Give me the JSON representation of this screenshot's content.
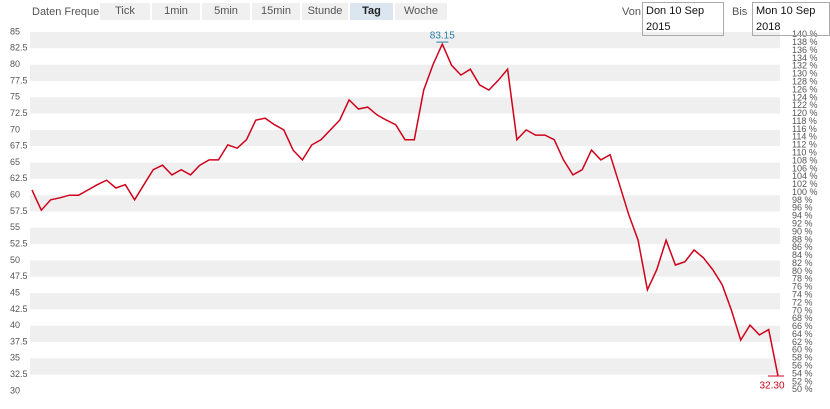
{
  "toolbar": {
    "label": "Daten Frequenz",
    "buttons": [
      {
        "label": "Tick",
        "selected": false
      },
      {
        "label": "1min",
        "selected": false
      },
      {
        "label": "5min",
        "selected": false
      },
      {
        "label": "15min",
        "selected": false
      },
      {
        "label": "Stunde",
        "selected": false
      },
      {
        "label": "Tag",
        "selected": true
      },
      {
        "label": "Woche",
        "selected": false
      }
    ],
    "from_label": "Von",
    "from_value": "Don 10 Sep 2015",
    "to_label": "Bis",
    "to_value": "Mon 10 Sep 2018"
  },
  "chart_data": {
    "type": "line",
    "color": "#d0021b",
    "grid": "bands",
    "values": [
      60.8,
      57.7,
      59.3,
      59.6,
      60,
      60,
      60.8,
      61.6,
      62.3,
      61.1,
      61.6,
      59.3,
      61.6,
      63.9,
      64.6,
      63.1,
      63.9,
      63.1,
      64.6,
      65.4,
      65.4,
      67.7,
      67.2,
      68.5,
      71.5,
      71.8,
      70.8,
      70,
      66.9,
      65.4,
      67.7,
      68.5,
      70,
      71.5,
      74.6,
      73.2,
      73.5,
      72.3,
      71.5,
      70.8,
      68.5,
      68.5,
      76.1,
      80,
      83.15,
      79.9,
      78.4,
      79.3,
      76.9,
      76.1,
      77.6,
      79.3,
      68.5,
      70,
      69.2,
      69.2,
      68.5,
      65.4,
      63.1,
      63.9,
      66.9,
      65.4,
      66.2,
      61.6,
      57,
      53.1,
      45.5,
      48.6,
      53.1,
      49.3,
      49.8,
      51.6,
      50.4,
      48.6,
      46.3,
      42.4,
      37.8,
      40.1,
      38.6,
      39.4,
      32.3
    ],
    "ylim": [
      30,
      85
    ],
    "yticks": [
      85,
      82.5,
      80,
      77.5,
      75,
      72.5,
      70,
      67.5,
      65,
      62.5,
      60,
      57.5,
      55,
      52.5,
      50,
      47.5,
      45,
      42.5,
      40,
      37.5,
      35,
      32.5,
      30
    ],
    "y2lim": [
      49.7,
      140.7
    ],
    "y2ticks": [
      {
        "value": 140,
        "label": "140 %"
      },
      {
        "value": 138,
        "label": "138 %"
      },
      {
        "value": 136,
        "label": "136 %"
      },
      {
        "value": 134,
        "label": "134 %"
      },
      {
        "value": 132,
        "label": "132 %"
      },
      {
        "value": 130,
        "label": "130 %"
      },
      {
        "value": 128,
        "label": "128 %"
      },
      {
        "value": 126,
        "label": "126 %"
      },
      {
        "value": 124,
        "label": "124 %"
      },
      {
        "value": 122,
        "label": "122 %"
      },
      {
        "value": 120,
        "label": "120 %"
      },
      {
        "value": 118,
        "label": "118 %"
      },
      {
        "value": 116,
        "label": "116 %"
      },
      {
        "value": 114,
        "label": "114 %"
      },
      {
        "value": 112,
        "label": "112 %"
      },
      {
        "value": 110,
        "label": "110 %"
      },
      {
        "value": 108,
        "label": "108 %"
      },
      {
        "value": 106,
        "label": "106 %"
      },
      {
        "value": 104,
        "label": "104 %"
      },
      {
        "value": 102,
        "label": "102 %"
      },
      {
        "value": 100,
        "label": "100 %"
      },
      {
        "value": 98,
        "label": "98 %"
      },
      {
        "value": 96,
        "label": "96 %"
      },
      {
        "value": 94,
        "label": "94 %"
      },
      {
        "value": 92,
        "label": "92 %"
      },
      {
        "value": 90,
        "label": "90 %"
      },
      {
        "value": 88,
        "label": "88 %"
      },
      {
        "value": 86,
        "label": "86 %"
      },
      {
        "value": 84,
        "label": "84 %"
      },
      {
        "value": 82,
        "label": "82 %"
      },
      {
        "value": 80,
        "label": "80 %"
      },
      {
        "value": 78,
        "label": "78 %"
      },
      {
        "value": 76,
        "label": "76 %"
      },
      {
        "value": 74,
        "label": "74 %"
      },
      {
        "value": 72,
        "label": "72 %"
      },
      {
        "value": 70,
        "label": "70 %"
      },
      {
        "value": 68,
        "label": "68 %"
      },
      {
        "value": 66,
        "label": "66 %"
      },
      {
        "value": 64,
        "label": "64 %"
      },
      {
        "value": 62,
        "label": "62 %"
      },
      {
        "value": 60,
        "label": "60 %"
      },
      {
        "value": 58,
        "label": "58 %"
      },
      {
        "value": 56,
        "label": "56 %"
      },
      {
        "value": 54,
        "label": "54 %"
      },
      {
        "value": 52,
        "label": "52 %"
      },
      {
        "value": 50,
        "label": "50 %"
      }
    ],
    "annotations": [
      {
        "value": 83.15,
        "label": "83.15",
        "color": "#2a7fa8"
      },
      {
        "value": 32.3,
        "label": "32.30",
        "color": "#d0021b"
      }
    ]
  }
}
